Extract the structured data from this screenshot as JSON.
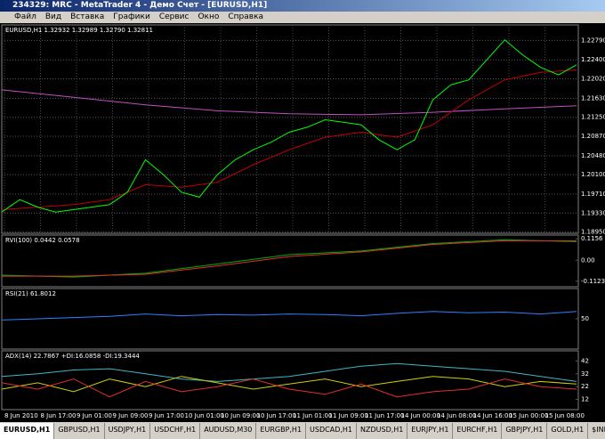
{
  "window": {
    "title": "234329: MRC - MetaTrader 4 - Демо Счет - [EURUSD,H1]",
    "menu": [
      "Файл",
      "Вид",
      "Вставка",
      "Графики",
      "Сервис",
      "Окно",
      "Справка"
    ],
    "tabs": [
      "EURUSD,H1",
      "GBPUSD,H1",
      "USDJPY,H1",
      "USDCHF,H1",
      "AUDUSD,M30",
      "EURGBP,H1",
      "USDCAD,H1",
      "NZDUSD,H1",
      "EURJPY,H1",
      "EURCHF,H1",
      "GBPJPY,H1",
      "GOLD,H1",
      "$INDU"
    ],
    "time_axis": [
      "8 Jun 2010",
      "8 Jun 17:00",
      "9 Jun 01:00",
      "9 Jun 09:00",
      "9 Jun 17:00",
      "10 Jun 01:00",
      "10 Jun 09:00",
      "10 Jun 17:00",
      "11 Jun 01:00",
      "11 Jun 09:00",
      "11 Jun 17:00",
      "14 Jun 00:00",
      "14 Jun 08:00",
      "14 Jun 16:00",
      "15 Jun 00:00",
      "15 Jun 08:00"
    ]
  },
  "chart_data": [
    {
      "type": "line",
      "title": "EURUSD,H1  1.32932 1.32989 1.32790 1.32811",
      "ylim": [
        1.18926,
        1.231
      ],
      "yticks": [
        {
          "value": 1.2279,
          "label": "1.22790"
        },
        {
          "value": 1.224,
          "label": "1.22400"
        },
        {
          "value": 1.2202,
          "label": "1.22020"
        },
        {
          "value": 1.2163,
          "label": "1.21630"
        },
        {
          "value": 1.2125,
          "label": "1.21250"
        },
        {
          "value": 1.2087,
          "label": "1.20870"
        },
        {
          "value": 1.2048,
          "label": "1.20480"
        },
        {
          "value": 1.201,
          "label": "1.20100"
        },
        {
          "value": 1.1971,
          "label": "1.19710"
        },
        {
          "value": 1.1933,
          "label": "1.19330"
        },
        {
          "value": 1.1895,
          "label": "1.18950"
        }
      ],
      "grid": true,
      "series": [
        {
          "color": "#c050c0",
          "values": [
            1.218,
            1.2165,
            1.215,
            1.2138,
            1.2132,
            1.213,
            1.2135,
            1.2142,
            1.2148
          ]
        },
        {
          "color": "#c00000",
          "values": [
            1.194,
            1.1945,
            1.195,
            1.196,
            1.199,
            1.1985,
            1.1995,
            1.203,
            1.206,
            1.2085,
            1.2095,
            1.2085,
            1.211,
            1.216,
            1.22,
            1.2215,
            1.222
          ]
        },
        {
          "color": "#00ff00",
          "values": [
            1.1935,
            1.196,
            1.1945,
            1.1935,
            1.194,
            1.1945,
            1.195,
            1.1975,
            1.204,
            1.201,
            1.1975,
            1.1965,
            1.201,
            1.204,
            1.206,
            1.2075,
            1.2095,
            1.2105,
            1.212,
            1.2115,
            1.211,
            1.208,
            1.206,
            1.208,
            1.216,
            1.219,
            1.22,
            1.224,
            1.228,
            1.225,
            1.2225,
            1.221,
            1.223
          ]
        }
      ]
    },
    {
      "type": "line",
      "title": "RVI(100) 0.0442 0.0578",
      "ylim": [
        -0.142,
        0.1354
      ],
      "yticks": [
        0.1156,
        {
          "value": 0,
          "label": "0.00"
        },
        -0.1123
      ],
      "series": [
        {
          "color": "#00b000",
          "values": [
            -0.08,
            -0.09,
            -0.07,
            -0.02,
            0.03,
            0.05,
            0.09,
            0.11,
            0.1
          ]
        },
        {
          "color": "#e03030",
          "values": [
            -0.085,
            -0.085,
            -0.075,
            -0.03,
            0.02,
            0.045,
            0.085,
            0.105,
            0.105
          ]
        }
      ]
    },
    {
      "type": "line",
      "title": "RSI(21) 61.8012",
      "ylim": [
        0,
        100
      ],
      "yticks": [
        50
      ],
      "series": [
        {
          "color": "#3080ff",
          "values": [
            48,
            50,
            52,
            54,
            58,
            55,
            57,
            56,
            58,
            57,
            55,
            59,
            62,
            60,
            61,
            58,
            62
          ]
        }
      ]
    },
    {
      "type": "line",
      "title": "ADX(14) 22.7867 +DI:16.0858 -DI:19.3444",
      "ylim": [
        4,
        50
      ],
      "yticks": [
        42,
        32,
        22,
        12
      ],
      "series": [
        {
          "color": "#40b8c0",
          "values": [
            30,
            32,
            35,
            36,
            32,
            28,
            26,
            28,
            30,
            34,
            38,
            40,
            38,
            36,
            34,
            30,
            26
          ]
        },
        {
          "color": "#d0d000",
          "values": [
            20,
            25,
            18,
            28,
            22,
            30,
            25,
            20,
            24,
            28,
            22,
            26,
            30,
            28,
            22,
            26,
            24
          ]
        },
        {
          "color": "#e03030",
          "values": [
            25,
            20,
            28,
            14,
            26,
            18,
            22,
            28,
            20,
            16,
            24,
            14,
            18,
            20,
            28,
            22,
            20
          ]
        }
      ]
    }
  ]
}
